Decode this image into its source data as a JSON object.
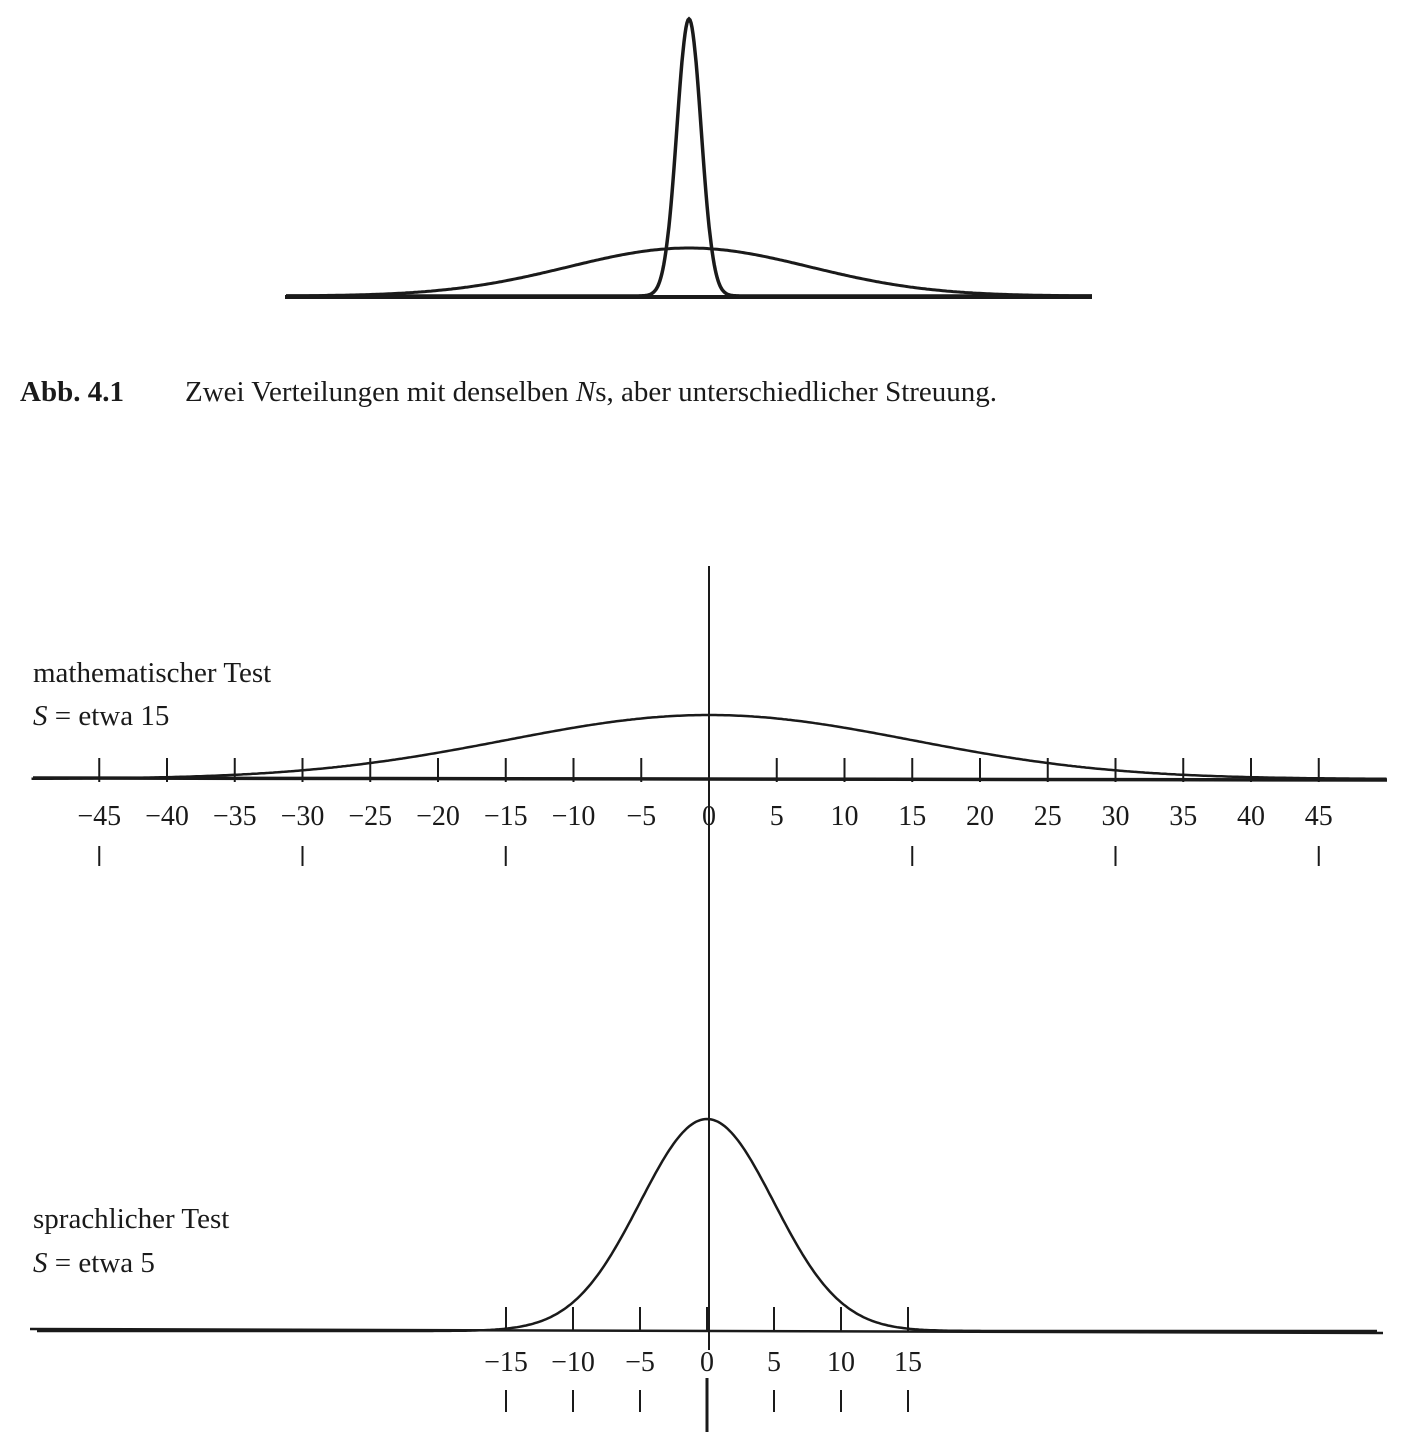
{
  "figure_top": {
    "caption_number": "Abb. 4.1",
    "caption_text_before": "Zwei Verteilungen mit denselben ",
    "caption_italic": "N",
    "caption_text_after": "s, aber unterschiedlicher Streuung."
  },
  "figure_bottom": {
    "upper": {
      "title": "mathematischer Test",
      "stat_symbol": "S",
      "stat_text": " = etwa 15"
    },
    "lower": {
      "title": "sprachlicher Test",
      "stat_symbol": "S",
      "stat_text": " = etwa 5"
    }
  },
  "colors": {
    "ink": "#1a1a1a",
    "background": "#ffffff"
  },
  "chart_data": [
    {
      "type": "line",
      "series": [
        {
          "mean": 0,
          "sd": 1.5,
          "shape": "narrow, tall peak"
        },
        {
          "mean": 0,
          "sd": 15,
          "shape": "wide, flat"
        }
      ],
      "title": "",
      "xlabel": "",
      "ylabel": "",
      "grid": false
    },
    {
      "type": "line",
      "series": [
        {
          "mean": 0,
          "sd": 15
        }
      ],
      "x_ticks": [
        -45,
        -40,
        -35,
        -30,
        -25,
        -20,
        -15,
        -10,
        -5,
        0,
        5,
        10,
        15,
        20,
        25,
        30,
        35,
        40,
        45
      ],
      "x_tick_labels": [
        "−45",
        "−40",
        "−35",
        "−30",
        "−25",
        "−20",
        "−15",
        "−10",
        "−5",
        "0",
        "5",
        "10",
        "15",
        "20",
        "25",
        "30",
        "35",
        "40",
        "45"
      ],
      "sd_markers": [
        -45,
        -30,
        -15,
        0,
        15,
        30,
        45
      ],
      "xlim": [
        -50,
        50
      ],
      "grid": false
    },
    {
      "type": "line",
      "series": [
        {
          "mean": 0,
          "sd": 5
        }
      ],
      "x_ticks": [
        -15,
        -10,
        -5,
        0,
        5,
        10,
        15
      ],
      "x_tick_labels": [
        "−15",
        "−10",
        "−5",
        "0",
        "5",
        "10",
        "15"
      ],
      "sd_markers": [
        -15,
        -10,
        -5,
        0,
        5,
        10,
        15
      ],
      "xlim": [
        -50,
        50
      ],
      "grid": false
    }
  ]
}
